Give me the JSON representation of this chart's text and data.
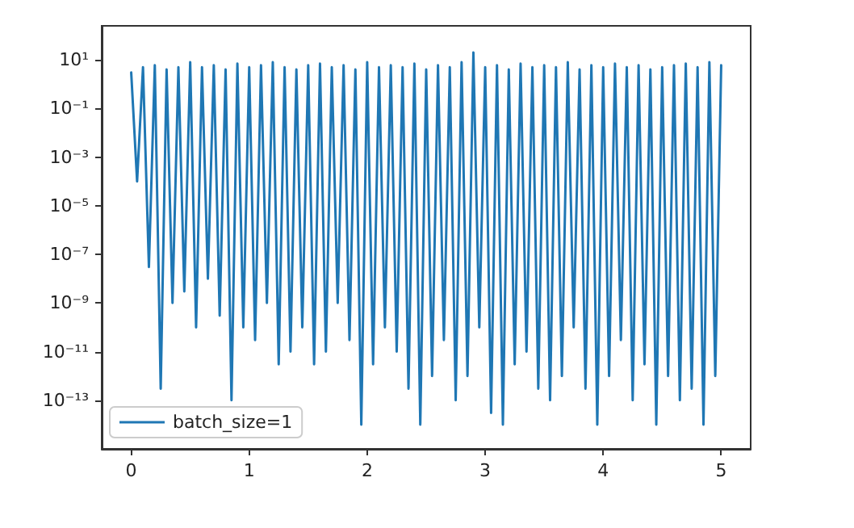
{
  "chart_data": {
    "type": "line",
    "log": "y",
    "grid": false,
    "legend": "bottom left",
    "marker": "none",
    "line_style": "solid",
    "xlim": [
      -0.25,
      5.25
    ],
    "xticks": [
      0,
      1,
      2,
      3,
      4,
      5
    ],
    "ylim": [
      1e-15,
      250
    ],
    "yticks": [
      {
        "value": 10,
        "label": "10¹"
      },
      {
        "value": 0.1,
        "label": "10⁻¹"
      },
      {
        "value": 0.001,
        "label": "10⁻³"
      },
      {
        "value": 1e-05,
        "label": "10⁻⁵"
      },
      {
        "value": 1e-07,
        "label": "10⁻⁷"
      },
      {
        "value": 1e-09,
        "label": "10⁻⁹"
      },
      {
        "value": 1e-11,
        "label": "10⁻¹¹"
      },
      {
        "value": 1e-13,
        "label": "10⁻¹³"
      }
    ],
    "series": [
      {
        "name": "batch_size=1",
        "color": "#1f77b4",
        "x": [
          0,
          0.05,
          0.1,
          0.15,
          0.2,
          0.25,
          0.3,
          0.35,
          0.4,
          0.45,
          0.5,
          0.55,
          0.6,
          0.65,
          0.7,
          0.75,
          0.8,
          0.85,
          0.9,
          0.95,
          1,
          1.05,
          1.1,
          1.15,
          1.2,
          1.25,
          1.3,
          1.35,
          1.4,
          1.45,
          1.5,
          1.55,
          1.6,
          1.65,
          1.7,
          1.75,
          1.8,
          1.85,
          1.9,
          1.95,
          2,
          2.05,
          2.1,
          2.15,
          2.2,
          2.25,
          2.3,
          2.35,
          2.4,
          2.45,
          2.5,
          2.55,
          2.6,
          2.65,
          2.7,
          2.75,
          2.8,
          2.85,
          2.9,
          2.95,
          3,
          3.05,
          3.1,
          3.15,
          3.2,
          3.25,
          3.3,
          3.35,
          3.4,
          3.45,
          3.5,
          3.55,
          3.6,
          3.65,
          3.7,
          3.75,
          3.8,
          3.85,
          3.9,
          3.95,
          4,
          4.05,
          4.1,
          4.15,
          4.2,
          4.25,
          4.3,
          4.35,
          4.4,
          4.45,
          4.5,
          4.55,
          4.6,
          4.65,
          4.7,
          4.75,
          4.8,
          4.85,
          4.9,
          4.95,
          5
        ],
        "values": [
          3,
          0.0001,
          5,
          3e-08,
          6,
          3e-13,
          4,
          1e-09,
          5,
          3e-09,
          8,
          1e-10,
          5,
          1e-08,
          6,
          3e-10,
          4,
          1e-13,
          7,
          1e-10,
          5,
          3e-11,
          6,
          1e-09,
          8,
          3e-12,
          5,
          1e-11,
          4,
          1e-10,
          6,
          3e-12,
          7,
          1e-11,
          5,
          1e-09,
          6,
          3e-11,
          4,
          1e-14,
          8,
          3e-12,
          5,
          1e-10,
          6,
          1e-11,
          5,
          3e-13,
          7,
          1e-14,
          4,
          1e-12,
          6,
          3e-11,
          5,
          1e-13,
          8,
          1e-12,
          20,
          1e-10,
          5,
          3e-14,
          6,
          1e-14,
          4,
          3e-12,
          7,
          1e-11,
          5,
          3e-13,
          6,
          1e-13,
          5,
          1e-12,
          8,
          1e-10,
          4,
          3e-13,
          6,
          1e-14,
          5,
          1e-12,
          7,
          3e-11,
          5,
          1e-13,
          6,
          3e-12,
          4,
          1e-14,
          5,
          1e-12,
          6,
          1e-13,
          7,
          3e-13,
          5,
          1e-14,
          8,
          1e-12,
          6
        ]
      }
    ]
  }
}
